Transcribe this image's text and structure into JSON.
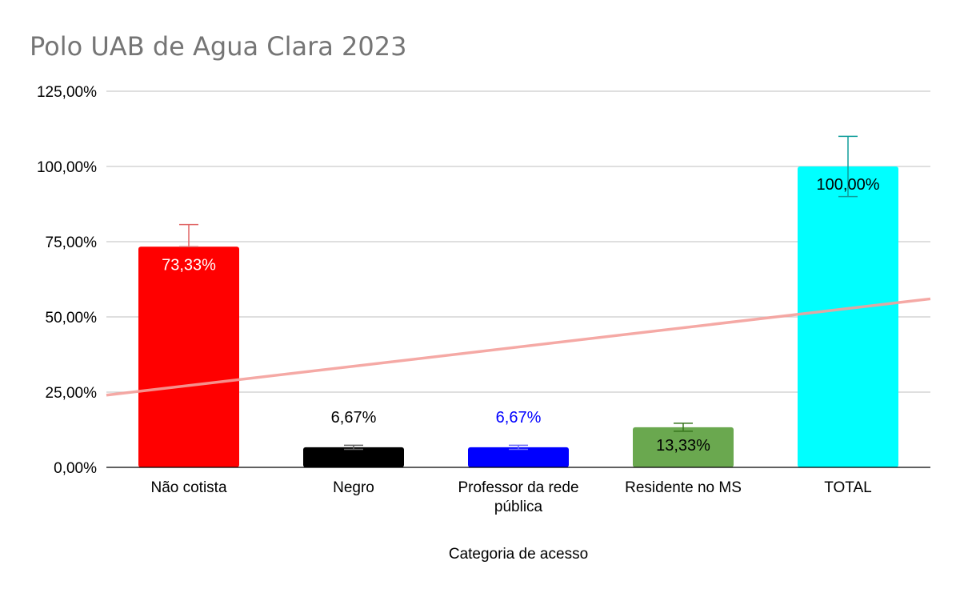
{
  "chart_data": {
    "type": "bar",
    "title": "Polo UAB de Agua Clara 2023",
    "xlabel": "Categoria de acesso",
    "ylabel": "",
    "ylim": [
      0,
      125
    ],
    "yticks": [
      0,
      25,
      50,
      75,
      100,
      125
    ],
    "ytick_labels": [
      "0,00%",
      "25,00%",
      "50,00%",
      "75,00%",
      "100,00%",
      "125,00%"
    ],
    "grid": true,
    "legend": "none",
    "categories": [
      [
        "Não cotista"
      ],
      [
        "Negro"
      ],
      [
        "Professor da rede",
        "pública"
      ],
      [
        "Residente no MS"
      ],
      [
        "TOTAL"
      ]
    ],
    "values": [
      73.33,
      6.67,
      6.67,
      13.33,
      100.0
    ],
    "data_labels": [
      "73,33%",
      "6,67%",
      "6,67%",
      "13,33%",
      "100,00%"
    ],
    "label_position": [
      "inside",
      "above",
      "above",
      "inside",
      "inside"
    ],
    "label_colors": [
      "#ffffff",
      "#000000",
      "#0000ff",
      "#000000",
      "#000000"
    ],
    "colors": [
      "#ff0000",
      "#000000",
      "#0000ff",
      "#6aa84f",
      "#00ffff"
    ],
    "error_bar_colors": [
      "#e06666",
      "#666666",
      "#6d6df7",
      "#38761d",
      "#0f9d9a"
    ],
    "error_bars": [
      {
        "high": 80.7,
        "low": 73.33
      },
      {
        "high": 7.34,
        "low": 6.0
      },
      {
        "high": 7.34,
        "low": 6.0
      },
      {
        "high": 14.66,
        "low": 12.0
      },
      {
        "high": 110.0,
        "low": 90.0
      }
    ],
    "trendline": {
      "type": "linear",
      "color": "#f4a09c",
      "y_start": 24.0,
      "y_end": 56.0
    }
  }
}
